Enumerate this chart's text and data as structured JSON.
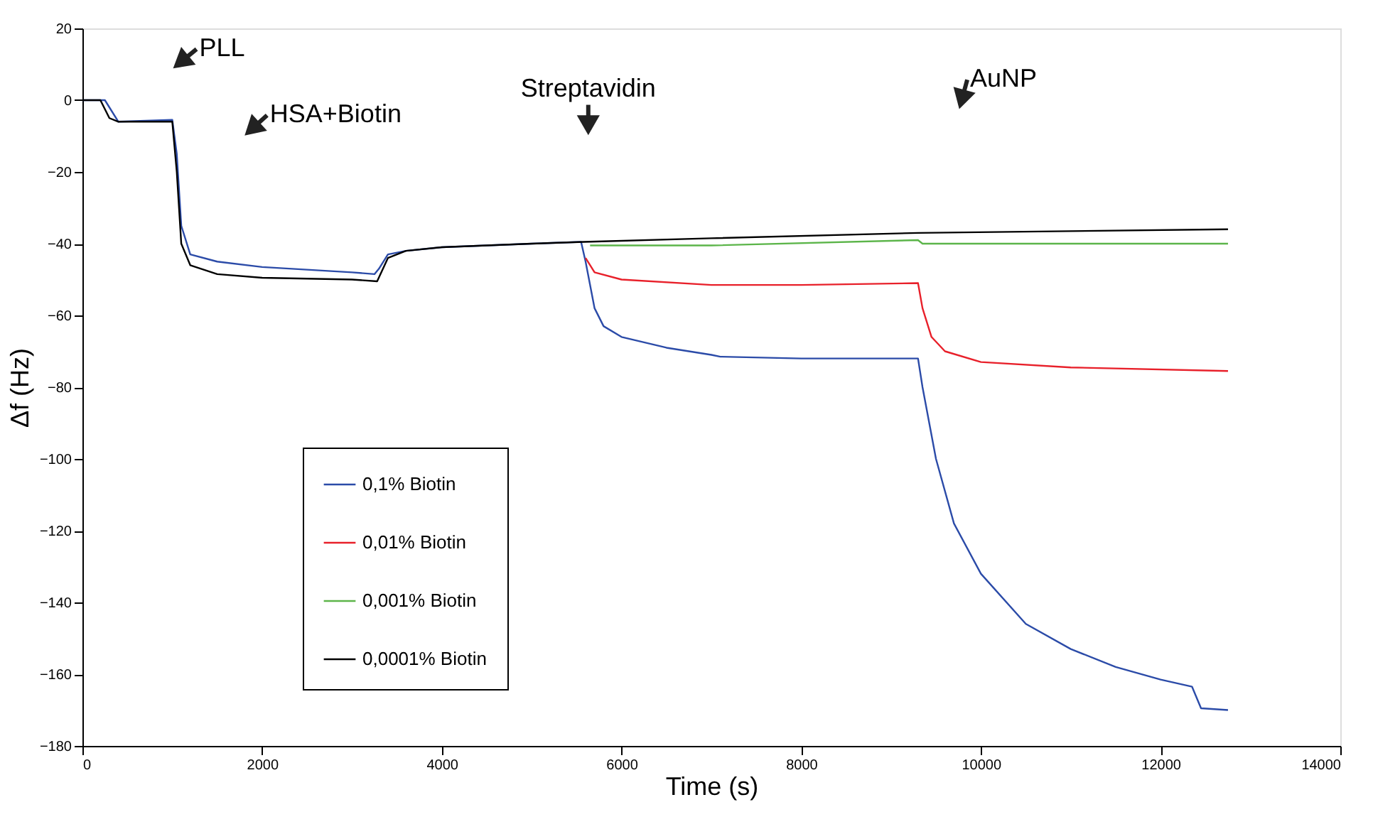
{
  "chart_data": {
    "type": "line",
    "xlabel": "Time (s)",
    "ylabel": "Δf (Hz)",
    "xlim": [
      0,
      14000
    ],
    "xticks": [
      0,
      2000,
      4000,
      6000,
      8000,
      10000,
      12000,
      14000
    ],
    "ylim": [
      -180,
      20
    ],
    "yticks": [
      -180,
      -160,
      -140,
      -120,
      -100,
      -80,
      -60,
      -40,
      -20,
      0,
      20
    ],
    "grid": false,
    "legend": "bottom left",
    "marker": "none",
    "line_style": "solid",
    "annotations": [
      "PLL",
      "HSA+Biotin",
      "Streptavidin",
      "AuNP"
    ],
    "series": [
      {
        "name": "0,1% Biotin",
        "color": "#2b4ba8",
        "x": [
          0,
          250,
          400,
          1000,
          1050,
          1100,
          1200,
          1500,
          2000,
          3000,
          3250,
          3300,
          3400,
          3600,
          4000,
          5000,
          5550,
          5600,
          5700,
          5800,
          6000,
          6500,
          7000,
          7100,
          8000,
          9300,
          9350,
          9500,
          9700,
          10000,
          10500,
          11000,
          11500,
          12000,
          12350,
          12450,
          12750
        ],
        "values": [
          0,
          0,
          -6,
          -5.5,
          -15,
          -35,
          -43,
          -45,
          -46.5,
          -48,
          -48.5,
          -47,
          -43,
          -42,
          -41,
          -40,
          -39.5,
          -45,
          -58,
          -63,
          -66,
          -69,
          -71,
          -71.5,
          -72,
          -72,
          -80,
          -100,
          -118,
          -132,
          -146,
          -153,
          -158,
          -161.5,
          -163.5,
          -169.5,
          -170
        ]
      },
      {
        "name": "0,01% Biotin",
        "color": "#e8202a",
        "x": [
          5600,
          5700,
          6000,
          7000,
          8000,
          9300,
          9350,
          9450,
          9600,
          10000,
          11000,
          12750
        ],
        "values": [
          -44,
          -48,
          -50,
          -51.5,
          -51.5,
          -51,
          -58,
          -66,
          -70,
          -73,
          -74.5,
          -75.5
        ]
      },
      {
        "name": "0,001% Biotin",
        "color": "#5cb54a",
        "x": [
          5650,
          7000,
          9300,
          9350,
          12750
        ],
        "values": [
          -40.5,
          -40.5,
          -39,
          -40,
          -40
        ]
      },
      {
        "name": "0,0001% Biotin",
        "color": "#000000",
        "x": [
          0,
          200,
          300,
          400,
          1000,
          1050,
          1100,
          1200,
          1500,
          2000,
          3000,
          3280,
          3400,
          3600,
          4000,
          5000,
          5580,
          7000,
          9300,
          12750
        ],
        "values": [
          0,
          0,
          -5,
          -6,
          -6,
          -20,
          -40,
          -46,
          -48.5,
          -49.5,
          -50,
          -50.5,
          -44,
          -42,
          -41,
          -40,
          -39.5,
          -38.5,
          -37,
          -36
        ]
      }
    ]
  }
}
